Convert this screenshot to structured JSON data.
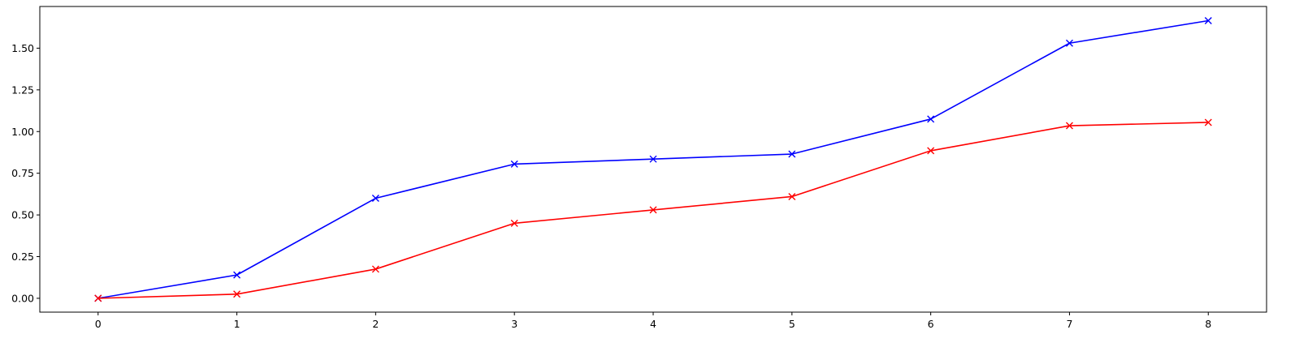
{
  "chart_data": {
    "type": "line",
    "title": "",
    "xlabel": "",
    "ylabel": "",
    "x": [
      0,
      1,
      2,
      3,
      4,
      5,
      6,
      7,
      8
    ],
    "xlim": [
      -0.42,
      8.42
    ],
    "ylim": [
      -0.083,
      1.75
    ],
    "xticks": [
      0,
      1,
      2,
      3,
      4,
      5,
      6,
      7,
      8
    ],
    "xtick_labels": [
      "0",
      "1",
      "2",
      "3",
      "4",
      "5",
      "6",
      "7",
      "8"
    ],
    "yticks": [
      0.0,
      0.25,
      0.5,
      0.75,
      1.0,
      1.25,
      1.5
    ],
    "ytick_labels": [
      "0.00",
      "0.25",
      "0.50",
      "0.75",
      "1.00",
      "1.25",
      "1.50"
    ],
    "grid": false,
    "marker": "x",
    "series": [
      {
        "color": "#0000ff",
        "values": [
          0.0,
          0.14,
          0.6,
          0.805,
          0.835,
          0.865,
          1.075,
          1.53,
          1.665
        ]
      },
      {
        "color": "#ff0000",
        "values": [
          0.0,
          0.025,
          0.175,
          0.45,
          0.53,
          0.61,
          0.885,
          1.035,
          1.055
        ]
      }
    ]
  }
}
